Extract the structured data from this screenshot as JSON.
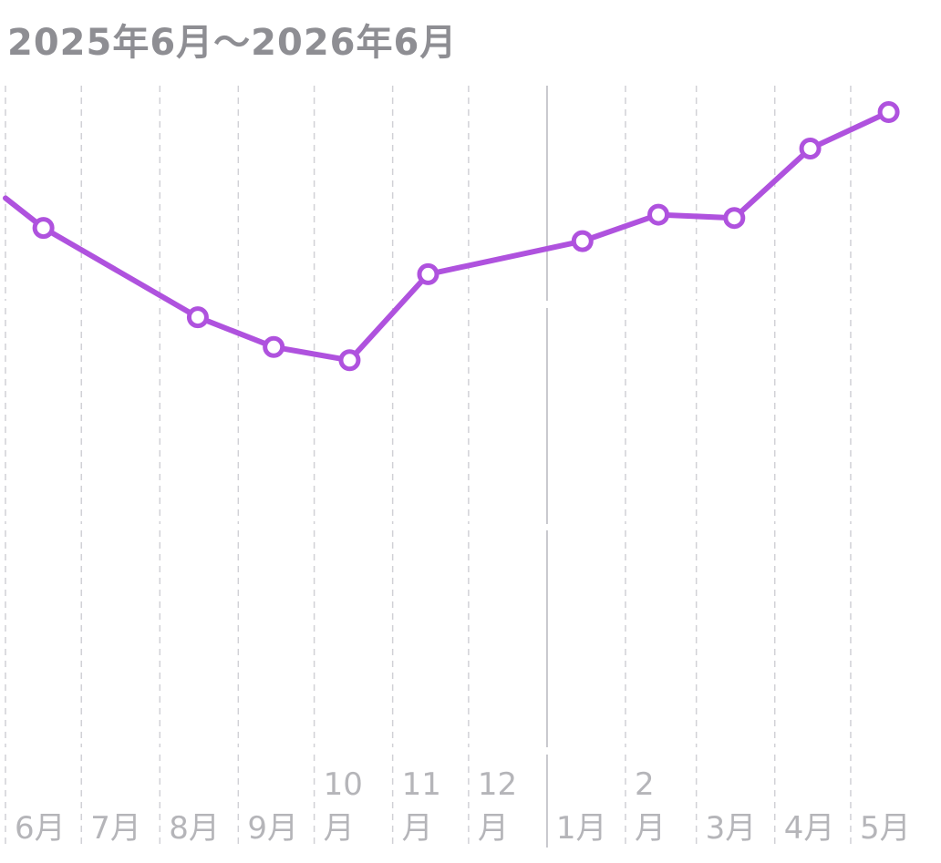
{
  "header": {
    "date_range": "2025年6月〜2026年6月"
  },
  "chart_data": {
    "type": "line",
    "title": "",
    "xlabel": "",
    "ylabel": "",
    "grid": true,
    "x_ticks": [
      {
        "date": "2025-06",
        "label": [
          "6月"
        ]
      },
      {
        "date": "2025-07",
        "label": [
          "7月"
        ]
      },
      {
        "date": "2025-08",
        "label": [
          "8月"
        ]
      },
      {
        "date": "2025-09",
        "label": [
          "9月"
        ]
      },
      {
        "date": "2025-10",
        "label": [
          "10",
          "月"
        ]
      },
      {
        "date": "2025-11",
        "label": [
          "11",
          "月"
        ]
      },
      {
        "date": "2025-12",
        "label": [
          "12",
          "月"
        ]
      },
      {
        "date": "2026-01",
        "label": [
          "1月"
        ]
      },
      {
        "date": "2026-02",
        "label": [
          "2",
          "月"
        ]
      },
      {
        "date": "2026-03",
        "label": [
          "3月"
        ]
      },
      {
        "date": "2026-04",
        "label": [
          "4月"
        ]
      },
      {
        "date": "2026-05",
        "label": [
          "5月"
        ]
      }
    ],
    "series": [
      {
        "color": "#af52de",
        "points": [
          {
            "x": "2025-06-01",
            "y": 0.66,
            "marker": false
          },
          {
            "x": "2025-06-16",
            "y": 0.57,
            "marker": true
          },
          {
            "x": "2025-08-16",
            "y": 0.3,
            "marker": true
          },
          {
            "x": "2025-09-15",
            "y": 0.21,
            "marker": true
          },
          {
            "x": "2025-10-15",
            "y": 0.17,
            "marker": true
          },
          {
            "x": "2025-11-15",
            "y": 0.43,
            "marker": true
          },
          {
            "x": "2026-01-15",
            "y": 0.53,
            "marker": true
          },
          {
            "x": "2026-02-14",
            "y": 0.61,
            "marker": true
          },
          {
            "x": "2026-03-16",
            "y": 0.6,
            "marker": true
          },
          {
            "x": "2026-04-15",
            "y": 0.81,
            "marker": true
          },
          {
            "x": "2026-05-16",
            "y": 0.92,
            "marker": true
          }
        ]
      }
    ],
    "ylim": [
      -1,
      1
    ]
  }
}
